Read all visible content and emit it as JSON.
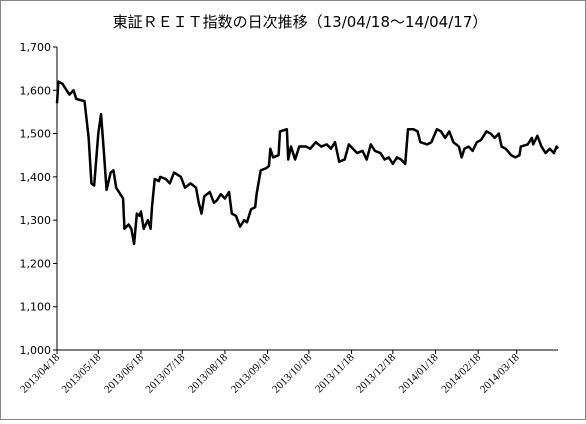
{
  "chart_data": {
    "type": "line",
    "title": "東証ＲＥＩＴ指数の日次推移（13/04/18～14/04/17）",
    "x": [
      "2013/04/18",
      "2013/04/19",
      "2013/04/22",
      "2013/04/25",
      "2013/04/27",
      "2013/04/30",
      "2013/05/02",
      "2013/05/08",
      "2013/05/11",
      "2013/05/13",
      "2013/05/15",
      "2013/05/18",
      "2013/05/20",
      "2013/05/22",
      "2013/05/24",
      "2013/05/27",
      "2013/05/29",
      "2013/05/31",
      "2013/06/03",
      "2013/06/05",
      "2013/06/06",
      "2013/06/09",
      "2013/06/11",
      "2013/06/13",
      "2013/06/15",
      "2013/06/17",
      "2013/06/18",
      "2013/06/20",
      "2013/06/23",
      "2013/06/25",
      "2013/06/26",
      "2013/06/28",
      "2013/07/01",
      "2013/07/02",
      "2013/07/06",
      "2013/07/09",
      "2013/07/12",
      "2013/07/17",
      "2013/07/20",
      "2013/07/24",
      "2013/07/28",
      "2013/07/30",
      "2013/08/01",
      "2013/08/03",
      "2013/08/07",
      "2013/08/10",
      "2013/08/12",
      "2013/08/15",
      "2013/08/18",
      "2013/08/21",
      "2013/08/23",
      "2013/08/26",
      "2013/08/29",
      "2013/09/01",
      "2013/09/03",
      "2013/09/06",
      "2013/09/09",
      "2013/09/10",
      "2013/09/13",
      "2013/09/17",
      "2013/09/19",
      "2013/09/20",
      "2013/09/22",
      "2013/09/26",
      "2013/09/27",
      "2013/10/02",
      "2013/10/03",
      "2013/10/05",
      "2013/10/08",
      "2013/10/11",
      "2013/10/16",
      "2013/10/19",
      "2013/10/23",
      "2013/10/27",
      "2013/10/31",
      "2013/11/03",
      "2013/11/06",
      "2013/11/09",
      "2013/11/13",
      "2013/11/16",
      "2013/11/19",
      "2013/11/22",
      "2013/11/26",
      "2013/11/29",
      "2013/12/02",
      "2013/12/05",
      "2013/12/09",
      "2013/12/12",
      "2013/12/15",
      "2013/12/18",
      "2013/12/21",
      "2013/12/24",
      "2013/12/27",
      "2013/12/29",
      "2014/01/02",
      "2014/01/05",
      "2014/01/07",
      "2014/01/12",
      "2014/01/15",
      "2014/01/19",
      "2014/01/22",
      "2014/01/25",
      "2014/01/28",
      "2014/01/31",
      "2014/02/04",
      "2014/02/06",
      "2014/02/08",
      "2014/02/11",
      "2014/02/14",
      "2014/02/17",
      "2014/02/20",
      "2014/02/24",
      "2014/02/27",
      "2014/03/02",
      "2014/03/05",
      "2014/03/07",
      "2014/03/10",
      "2014/03/14",
      "2014/03/17",
      "2014/03/20",
      "2014/03/21",
      "2014/03/26",
      "2014/03/29",
      "2014/03/30",
      "2014/04/02",
      "2014/04/05",
      "2014/04/08",
      "2014/04/11",
      "2014/04/14",
      "2014/04/16",
      "2014/04/17"
    ],
    "series": [
      {
        "color": "#000000",
        "values": [
          1570,
          1620,
          1615,
          1600,
          1590,
          1600,
          1580,
          1575,
          1490,
          1385,
          1380,
          1500,
          1545,
          1460,
          1370,
          1410,
          1415,
          1375,
          1360,
          1350,
          1280,
          1290,
          1280,
          1245,
          1315,
          1310,
          1320,
          1280,
          1300,
          1280,
          1330,
          1395,
          1390,
          1400,
          1395,
          1385,
          1410,
          1400,
          1375,
          1385,
          1375,
          1340,
          1315,
          1355,
          1365,
          1340,
          1345,
          1360,
          1350,
          1365,
          1315,
          1310,
          1285,
          1300,
          1295,
          1325,
          1330,
          1360,
          1415,
          1420,
          1425,
          1465,
          1445,
          1450,
          1505,
          1510,
          1440,
          1470,
          1440,
          1470,
          1470,
          1465,
          1480,
          1470,
          1475,
          1465,
          1480,
          1435,
          1440,
          1475,
          1465,
          1455,
          1460,
          1440,
          1475,
          1460,
          1455,
          1440,
          1445,
          1430,
          1445,
          1440,
          1430,
          1510,
          1510,
          1505,
          1480,
          1475,
          1480,
          1510,
          1505,
          1490,
          1505,
          1480,
          1470,
          1445,
          1465,
          1470,
          1460,
          1480,
          1485,
          1505,
          1500,
          1490,
          1500,
          1470,
          1465,
          1450,
          1445,
          1450,
          1470,
          1475,
          1490,
          1475,
          1495,
          1470,
          1455,
          1465,
          1455,
          1470,
          1465
        ]
      }
    ],
    "xlim": [
      "2013/04/18",
      "2014/04/17"
    ],
    "xticks": [
      "2013/04/18",
      "2013/05/18",
      "2013/06/18",
      "2013/07/18",
      "2013/08/18",
      "2013/09/18",
      "2013/10/18",
      "2013/11/18",
      "2013/12/18",
      "2014/01/18",
      "2014/02/18",
      "2014/03/18"
    ],
    "ylim": [
      1000,
      1700
    ],
    "yticks": [
      {
        "value": 1000,
        "label": "1,000"
      },
      {
        "value": 1100,
        "label": "1,100"
      },
      {
        "value": 1200,
        "label": "1,200"
      },
      {
        "value": 1300,
        "label": "1,300"
      },
      {
        "value": 1400,
        "label": "1,400"
      },
      {
        "value": 1500,
        "label": "1,500"
      },
      {
        "value": 1600,
        "label": "1,600"
      },
      {
        "value": 1700,
        "label": "1,700"
      }
    ],
    "grid": false
  }
}
